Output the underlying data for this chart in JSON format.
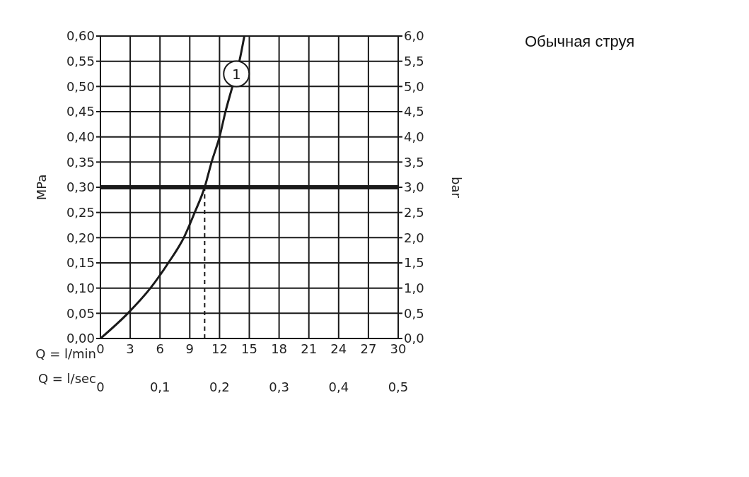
{
  "chart_data": {
    "type": "line",
    "title": "Обычная струя",
    "xlabel": "Q = l/min",
    "x2label": "Q = l/sec",
    "ylabel": "MPa",
    "y2label": "bar",
    "x": [
      0,
      2.76,
      5.04,
      6.84,
      8.4,
      9.5,
      10.5,
      11.2,
      12.0,
      12.6,
      13.3,
      14.0,
      14.5
    ],
    "series": [
      {
        "color": "#1a1a1a",
        "values": [
          0,
          0.05,
          0.1,
          0.15,
          0.2,
          0.25,
          0.3,
          0.35,
          0.4,
          0.45,
          0.5,
          0.55,
          0.6
        ]
      }
    ],
    "xlim": [
      0,
      30
    ],
    "xticks": [
      0,
      3,
      6,
      9,
      12,
      15,
      18,
      21,
      24,
      27,
      30
    ],
    "x2lim": [
      0,
      0.5
    ],
    "x2ticks": [
      0,
      {
        "value": 0.1,
        "label": "0,1"
      },
      {
        "value": 0.2,
        "label": "0,2"
      },
      {
        "value": 0.3,
        "label": "0,3"
      },
      {
        "value": 0.4,
        "label": "0,4"
      },
      {
        "value": 0.5,
        "label": "0,5"
      }
    ],
    "ylim": [
      0,
      0.6
    ],
    "yticks": [
      {
        "value": 0,
        "label": "0,00"
      },
      {
        "value": 0.05,
        "label": "0,05"
      },
      {
        "value": 0.1,
        "label": "0,10"
      },
      {
        "value": 0.15,
        "label": "0,15"
      },
      {
        "value": 0.2,
        "label": "0,20"
      },
      {
        "value": 0.25,
        "label": "0,25"
      },
      {
        "value": 0.3,
        "label": "0,30"
      },
      {
        "value": 0.35,
        "label": "0,35"
      },
      {
        "value": 0.4,
        "label": "0,40"
      },
      {
        "value": 0.45,
        "label": "0,45"
      },
      {
        "value": 0.5,
        "label": "0,50"
      },
      {
        "value": 0.55,
        "label": "0,55"
      },
      {
        "value": 0.6,
        "label": "0,60"
      }
    ],
    "y2lim": [
      0,
      6
    ],
    "y2ticks": [
      {
        "value": 0,
        "label": "0,0"
      },
      {
        "value": 0.5,
        "label": "0,5"
      },
      {
        "value": 1,
        "label": "1,0"
      },
      {
        "value": 1.5,
        "label": "1,5"
      },
      {
        "value": 2,
        "label": "2,0"
      },
      {
        "value": 2.5,
        "label": "2,5"
      },
      {
        "value": 3,
        "label": "3,0"
      },
      {
        "value": 3.5,
        "label": "3,5"
      },
      {
        "value": 4,
        "label": "4,0"
      },
      {
        "value": 4.5,
        "label": "4,5"
      },
      {
        "value": 5,
        "label": "5,0"
      },
      {
        "value": 5.5,
        "label": "5,5"
      },
      {
        "value": 6,
        "label": "6,0"
      }
    ],
    "ref_lines": [
      {
        "axis": "y",
        "value": 0.3,
        "color": "#1a1a1a",
        "line_style": "solid"
      },
      {
        "axis": "x",
        "value": 10.5,
        "color": "#1a1a1a",
        "line_style": "dashed"
      }
    ],
    "annotations": [
      {
        "text": "1",
        "x": 13.7,
        "y": 0.525
      }
    ],
    "grid": true,
    "marker": "none",
    "line_style": "solid"
  }
}
